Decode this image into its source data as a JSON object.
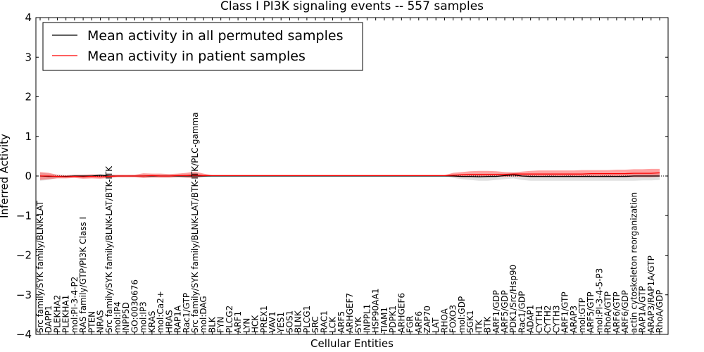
{
  "chart_data": {
    "type": "line",
    "title": "Class I PI3K signaling events -- 557 samples",
    "xlabel": "Cellular Entities",
    "ylabel": "Inferred Activity",
    "ylim": [
      -4,
      4
    ],
    "yticks": [
      -4,
      -3,
      -2,
      -1,
      0,
      1,
      2,
      3,
      4
    ],
    "ytick_labels": [
      "−4",
      "−3",
      "−2",
      "−1",
      "0",
      "1",
      "2",
      "3",
      "4"
    ],
    "legend_position": "top-left",
    "categories": [
      "Src family/SYK family/BLNK-LAT",
      "DAPP1",
      "PLEKHA2",
      "PLEKHA1",
      "mol:PI-3-4-P2",
      "RAS family/GTP/PI3K Class I",
      "PTEN",
      "NRAS",
      "Src family/SYK family/BLNK-LAT/BTK-ITK",
      "mol:IP4",
      "INPP5D",
      "GO:0030676",
      "mol:IP3",
      "KRAS",
      "mol:Ca2+",
      "HRAS",
      "RAP1A",
      "Rac1/GTP",
      "Src family/SYK family/BLNK-LAT/BTK-ITK/PLC-gamma",
      "mol:DAG",
      "BLK",
      "FYN",
      "PLCG2",
      "ARF1",
      "LYN",
      "HCK",
      "PREX1",
      "VAV1",
      "YES1",
      "SOS1",
      "BLNK",
      "PLCG1",
      "SRC",
      "RAC1",
      "LCK",
      "ARF5",
      "ARHGEF7",
      "SYK",
      "INPPL1",
      "HSP90AA1",
      "TIAM1",
      "PDPK1",
      "ARHGEF6",
      "FGR",
      "ARF6",
      "ZAP70",
      "LAT",
      "RHOA",
      "FOXO3",
      "mol:GDP",
      "SGK1",
      "ITK",
      "BTK",
      "ARF1/GDP",
      "ARF5/GDP",
      "PDK1/Src/Hsp90",
      "Rac1/GDP",
      "ADAP1",
      "CYTH1",
      "CYTH2",
      "CYTH3",
      "ARF1/GTP",
      "ARAP3",
      "mol:GTP",
      "ARF5/GTP",
      "mol:PI-3-4-5-P3",
      "RhoA/GTP",
      "ARF6/GTP",
      "ARF6/GDP",
      "actin cytoskeleton reorganization",
      "RAP1A/GTP",
      "ARAP3/RAP1A/GTP",
      "RhoA/GDP"
    ],
    "series": [
      {
        "name": "Mean activity in all permuted samples",
        "color": "#000000",
        "values": [
          0.0,
          -0.01,
          -0.01,
          -0.01,
          0.0,
          0.0,
          0.0,
          0.02,
          0.0,
          0.0,
          0.0,
          0.0,
          0.0,
          0.0,
          0.0,
          0.0,
          0.0,
          0.0,
          0.0,
          0.0,
          0.0,
          0.0,
          0.0,
          0.0,
          0.0,
          0.0,
          0.0,
          0.0,
          0.0,
          0.0,
          0.0,
          0.0,
          0.0,
          0.0,
          0.0,
          0.0,
          0.0,
          0.0,
          0.0,
          0.0,
          0.0,
          0.0,
          0.0,
          0.0,
          0.0,
          0.0,
          0.0,
          0.0,
          0.0,
          -0.01,
          -0.01,
          -0.02,
          -0.01,
          -0.01,
          0.01,
          0.03,
          0.0,
          -0.01,
          -0.01,
          -0.01,
          -0.01,
          -0.01,
          -0.01,
          -0.01,
          -0.01,
          -0.01,
          -0.01,
          -0.01,
          -0.01,
          0.0,
          0.0,
          0.0,
          0.0
        ],
        "band_low": [
          -0.12,
          -0.1,
          -0.05,
          -0.03,
          -0.02,
          -0.04,
          -0.03,
          -0.02,
          -0.02,
          -0.02,
          -0.01,
          -0.02,
          -0.05,
          -0.03,
          -0.04,
          -0.04,
          -0.03,
          -0.05,
          -0.05,
          -0.03,
          -0.01,
          -0.01,
          -0.01,
          -0.01,
          -0.01,
          -0.01,
          -0.01,
          -0.01,
          -0.01,
          -0.01,
          -0.01,
          -0.01,
          -0.01,
          -0.01,
          -0.01,
          -0.01,
          -0.01,
          -0.01,
          -0.01,
          -0.01,
          -0.01,
          -0.01,
          -0.01,
          -0.01,
          -0.01,
          -0.01,
          -0.01,
          -0.01,
          -0.05,
          -0.08,
          -0.1,
          -0.12,
          -0.12,
          -0.1,
          -0.08,
          -0.06,
          -0.1,
          -0.12,
          -0.12,
          -0.12,
          -0.12,
          -0.12,
          -0.12,
          -0.12,
          -0.12,
          -0.12,
          -0.12,
          -0.12,
          -0.12,
          -0.12,
          -0.11,
          -0.11,
          -0.1
        ],
        "band_high": [
          0.08,
          0.06,
          0.03,
          0.02,
          0.02,
          0.03,
          0.04,
          0.05,
          0.03,
          0.02,
          0.01,
          0.02,
          0.04,
          0.03,
          0.04,
          0.04,
          0.04,
          0.05,
          0.06,
          0.04,
          0.01,
          0.01,
          0.01,
          0.01,
          0.01,
          0.01,
          0.01,
          0.01,
          0.01,
          0.01,
          0.01,
          0.01,
          0.01,
          0.01,
          0.01,
          0.01,
          0.01,
          0.01,
          0.01,
          0.01,
          0.01,
          0.01,
          0.01,
          0.01,
          0.01,
          0.01,
          0.01,
          0.01,
          0.03,
          0.05,
          0.06,
          0.06,
          0.06,
          0.06,
          0.07,
          0.08,
          0.06,
          0.06,
          0.06,
          0.06,
          0.06,
          0.06,
          0.06,
          0.06,
          0.06,
          0.06,
          0.06,
          0.06,
          0.06,
          0.07,
          0.07,
          0.07,
          0.08
        ]
      },
      {
        "name": "Mean activity in patient samples",
        "color": "#ff0000",
        "values": [
          0.0,
          0.0,
          -0.01,
          -0.02,
          -0.01,
          -0.02,
          -0.01,
          -0.02,
          -0.01,
          0.0,
          0.0,
          0.0,
          0.0,
          0.01,
          0.0,
          0.0,
          0.01,
          0.01,
          0.02,
          0.01,
          0.01,
          0.01,
          0.01,
          0.01,
          0.01,
          0.01,
          0.01,
          0.01,
          0.01,
          0.01,
          0.01,
          0.01,
          0.01,
          0.01,
          0.01,
          0.01,
          0.01,
          0.01,
          0.01,
          0.01,
          0.01,
          0.01,
          0.01,
          0.01,
          0.01,
          0.01,
          0.01,
          0.01,
          0.02,
          0.03,
          0.04,
          0.04,
          0.04,
          0.04,
          0.04,
          0.05,
          0.05,
          0.05,
          0.05,
          0.05,
          0.05,
          0.05,
          0.05,
          0.05,
          0.06,
          0.06,
          0.06,
          0.06,
          0.06,
          0.07,
          0.07,
          0.07,
          0.08
        ],
        "band_low": [
          -0.1,
          -0.08,
          -0.06,
          -0.06,
          -0.05,
          -0.07,
          -0.06,
          -0.07,
          -0.05,
          -0.03,
          -0.03,
          -0.03,
          -0.05,
          -0.04,
          -0.04,
          -0.04,
          -0.03,
          -0.04,
          -0.05,
          -0.02,
          0.0,
          0.0,
          0.0,
          0.0,
          0.0,
          0.0,
          0.0,
          0.0,
          0.0,
          0.0,
          0.0,
          0.0,
          0.0,
          0.0,
          0.0,
          0.0,
          0.0,
          0.0,
          0.0,
          0.0,
          0.0,
          0.0,
          0.0,
          0.0,
          0.0,
          0.0,
          0.0,
          0.0,
          -0.02,
          -0.03,
          -0.03,
          -0.03,
          -0.03,
          -0.02,
          -0.02,
          -0.01,
          -0.02,
          -0.03,
          -0.03,
          -0.03,
          -0.03,
          -0.03,
          -0.03,
          -0.03,
          -0.03,
          -0.03,
          -0.03,
          -0.03,
          -0.03,
          -0.03,
          -0.03,
          -0.03,
          -0.02
        ],
        "band_high": [
          0.1,
          0.08,
          0.03,
          0.02,
          0.03,
          0.03,
          0.04,
          0.03,
          0.03,
          0.03,
          0.03,
          0.03,
          0.07,
          0.06,
          0.06,
          0.05,
          0.06,
          0.08,
          0.11,
          0.06,
          0.02,
          0.02,
          0.02,
          0.02,
          0.02,
          0.02,
          0.02,
          0.02,
          0.02,
          0.02,
          0.02,
          0.02,
          0.02,
          0.02,
          0.02,
          0.02,
          0.02,
          0.02,
          0.02,
          0.02,
          0.02,
          0.02,
          0.02,
          0.02,
          0.02,
          0.02,
          0.02,
          0.02,
          0.08,
          0.1,
          0.12,
          0.13,
          0.13,
          0.12,
          0.1,
          0.09,
          0.11,
          0.13,
          0.14,
          0.14,
          0.14,
          0.14,
          0.14,
          0.15,
          0.15,
          0.15,
          0.15,
          0.16,
          0.16,
          0.17,
          0.17,
          0.18,
          0.18
        ]
      }
    ]
  }
}
